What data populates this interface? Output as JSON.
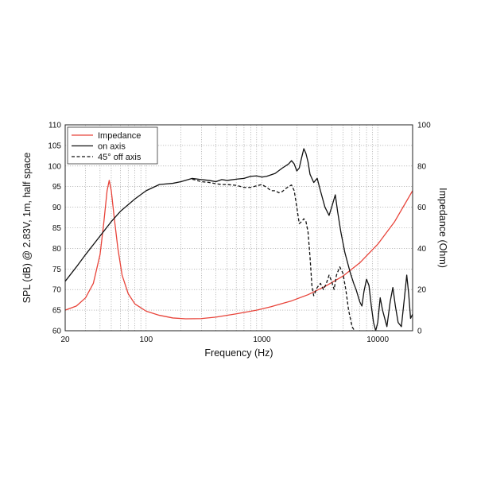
{
  "chart_data": {
    "type": "line",
    "xlabel": "Frequency (Hz)",
    "ylabel": "SPL (dB) @ 2.83V, 1m, half space",
    "y2label": "Impedance (Ohm)",
    "x_scale": "log",
    "xlim": [
      20,
      20000
    ],
    "ylim": [
      60,
      110
    ],
    "y2lim": [
      0,
      100
    ],
    "grid": true,
    "legend_position": "top-left",
    "x_ticks": [
      20,
      100,
      1000,
      10000
    ],
    "x_tick_labels": [
      "20",
      "100",
      "1000",
      "10000"
    ],
    "y_ticks": [
      60,
      65,
      70,
      75,
      80,
      85,
      90,
      95,
      100,
      105,
      110
    ],
    "y_tick_labels": [
      "60",
      "65",
      "70",
      "75",
      "80",
      "85",
      "90",
      "95",
      "100",
      "105",
      "110"
    ],
    "y2_ticks": [
      0,
      20,
      40,
      60,
      80,
      100
    ],
    "y2_tick_labels": [
      "0",
      "20",
      "40",
      "60",
      "80",
      "100"
    ],
    "series": [
      {
        "name": "Impedance",
        "axis": "right",
        "color": "#e8443a",
        "dash": "solid",
        "points": [
          [
            20,
            10
          ],
          [
            25,
            12
          ],
          [
            30,
            16
          ],
          [
            35,
            23
          ],
          [
            40,
            37
          ],
          [
            43,
            52
          ],
          [
            46,
            68
          ],
          [
            48,
            73
          ],
          [
            50,
            68
          ],
          [
            53,
            55
          ],
          [
            57,
            40
          ],
          [
            62,
            27
          ],
          [
            70,
            18
          ],
          [
            80,
            13
          ],
          [
            100,
            9.5
          ],
          [
            130,
            7.5
          ],
          [
            170,
            6.2
          ],
          [
            220,
            5.8
          ],
          [
            300,
            5.9
          ],
          [
            400,
            6.6
          ],
          [
            600,
            8.2
          ],
          [
            900,
            10
          ],
          [
            1200,
            11.7
          ],
          [
            1800,
            14.5
          ],
          [
            2500,
            17.5
          ],
          [
            3500,
            21.5
          ],
          [
            5000,
            26.5
          ],
          [
            7000,
            33
          ],
          [
            10000,
            42
          ],
          [
            14000,
            53
          ],
          [
            20000,
            68
          ]
        ]
      },
      {
        "name": "on axis",
        "axis": "left",
        "color": "#111111",
        "dash": "solid",
        "points": [
          [
            20,
            72
          ],
          [
            25,
            75.5
          ],
          [
            30,
            78.5
          ],
          [
            40,
            83
          ],
          [
            50,
            86.5
          ],
          [
            60,
            89
          ],
          [
            80,
            92
          ],
          [
            100,
            94
          ],
          [
            130,
            95.5
          ],
          [
            170,
            95.8
          ],
          [
            200,
            96.2
          ],
          [
            250,
            97
          ],
          [
            300,
            96.7
          ],
          [
            350,
            96.5
          ],
          [
            400,
            96.2
          ],
          [
            450,
            96.7
          ],
          [
            500,
            96.5
          ],
          [
            600,
            96.8
          ],
          [
            700,
            97
          ],
          [
            800,
            97.5
          ],
          [
            900,
            97.6
          ],
          [
            1000,
            97.3
          ],
          [
            1100,
            97.5
          ],
          [
            1300,
            98.2
          ],
          [
            1500,
            99.5
          ],
          [
            1700,
            100.5
          ],
          [
            1800,
            101.3
          ],
          [
            1900,
            100.5
          ],
          [
            2000,
            98.8
          ],
          [
            2100,
            99.5
          ],
          [
            2200,
            102
          ],
          [
            2300,
            104.2
          ],
          [
            2400,
            103
          ],
          [
            2500,
            101
          ],
          [
            2600,
            98
          ],
          [
            2800,
            96
          ],
          [
            3000,
            97
          ],
          [
            3200,
            94
          ],
          [
            3500,
            90
          ],
          [
            3800,
            88
          ],
          [
            4000,
            90
          ],
          [
            4300,
            93
          ],
          [
            4500,
            89
          ],
          [
            4800,
            84
          ],
          [
            5200,
            79
          ],
          [
            5800,
            74
          ],
          [
            6200,
            71.5
          ],
          [
            6500,
            70
          ],
          [
            7000,
            67
          ],
          [
            7300,
            66
          ],
          [
            7600,
            69.5
          ],
          [
            8000,
            72.5
          ],
          [
            8400,
            71
          ],
          [
            8800,
            66
          ],
          [
            9200,
            62
          ],
          [
            9600,
            60
          ],
          [
            10000,
            62
          ],
          [
            10500,
            68
          ],
          [
            11000,
            65
          ],
          [
            12000,
            61
          ],
          [
            12800,
            67
          ],
          [
            13500,
            70.5
          ],
          [
            14200,
            66
          ],
          [
            15000,
            62
          ],
          [
            16000,
            61
          ],
          [
            17000,
            68
          ],
          [
            17800,
            73.5
          ],
          [
            18500,
            69
          ],
          [
            19200,
            63
          ],
          [
            20000,
            64
          ]
        ]
      },
      {
        "name": "45° off axis",
        "axis": "left",
        "color": "#111111",
        "dash": "dashed",
        "points": [
          [
            250,
            96.8
          ],
          [
            300,
            96.2
          ],
          [
            350,
            96
          ],
          [
            400,
            95.7
          ],
          [
            450,
            95.5
          ],
          [
            500,
            95.5
          ],
          [
            600,
            95.3
          ],
          [
            700,
            94.8
          ],
          [
            800,
            94.8
          ],
          [
            900,
            95.2
          ],
          [
            1000,
            95.5
          ],
          [
            1100,
            94.8
          ],
          [
            1200,
            94
          ],
          [
            1300,
            94
          ],
          [
            1400,
            93.5
          ],
          [
            1500,
            93.8
          ],
          [
            1600,
            94.5
          ],
          [
            1700,
            95
          ],
          [
            1800,
            95.4
          ],
          [
            1900,
            94
          ],
          [
            2000,
            90
          ],
          [
            2100,
            86
          ],
          [
            2200,
            86.5
          ],
          [
            2300,
            87.2
          ],
          [
            2400,
            86.5
          ],
          [
            2500,
            84
          ],
          [
            2600,
            78
          ],
          [
            2700,
            71
          ],
          [
            2800,
            68.5
          ],
          [
            2900,
            69.5
          ],
          [
            3000,
            70.5
          ],
          [
            3200,
            71.5
          ],
          [
            3400,
            70
          ],
          [
            3600,
            71.5
          ],
          [
            3800,
            73.5
          ],
          [
            4000,
            72
          ],
          [
            4200,
            70
          ],
          [
            4400,
            73.5
          ],
          [
            4700,
            75.5
          ],
          [
            5000,
            74
          ],
          [
            5300,
            70
          ],
          [
            5600,
            65
          ],
          [
            6000,
            61
          ],
          [
            6300,
            60
          ]
        ]
      }
    ]
  }
}
